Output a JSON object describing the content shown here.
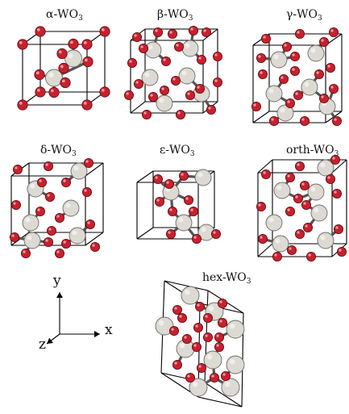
{
  "panels": [
    {
      "id": "alpha",
      "name": "α-WO",
      "sub": "3"
    },
    {
      "id": "beta",
      "name": "β-WO",
      "sub": "3"
    },
    {
      "id": "gamma",
      "name": "γ-WO",
      "sub": "3"
    },
    {
      "id": "delta",
      "name": "δ-WO",
      "sub": "3"
    },
    {
      "id": "epsilon",
      "name": "ε-WO",
      "sub": "3"
    },
    {
      "id": "orth",
      "name": "orth-WO",
      "sub": "3"
    },
    {
      "id": "hex",
      "name": "hex-WO",
      "sub": "3"
    }
  ],
  "axes": {
    "y": "y",
    "x": "x",
    "z": "z"
  },
  "colors": {
    "oxygen": "#c8202e",
    "tungsten": "#dcdad3",
    "bond": "#555555",
    "cell_edge": "#000000"
  }
}
